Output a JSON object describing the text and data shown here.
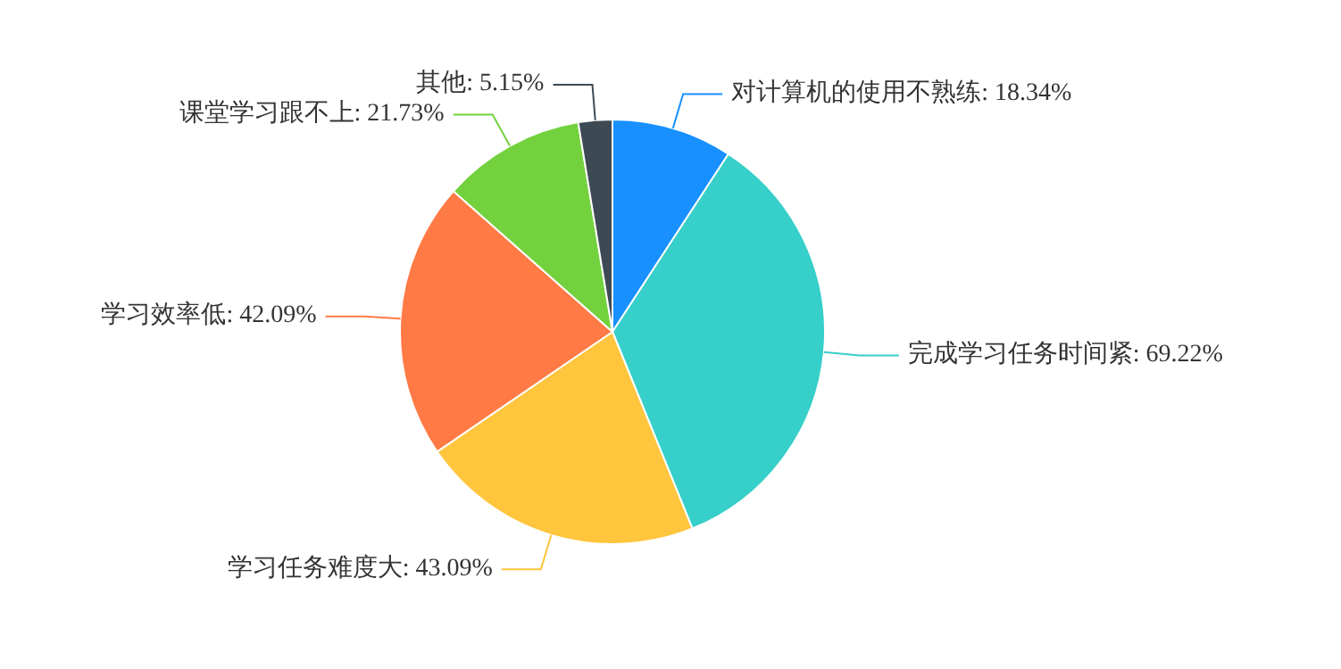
{
  "chart_data": {
    "type": "pie",
    "categories": [
      "对计算机的使用不熟练",
      "完成学习任务时间紧",
      "学习任务难度大",
      "学习效率低",
      "课堂学习跟不上",
      "其他"
    ],
    "values": [
      18.34,
      69.22,
      43.09,
      42.09,
      21.73,
      5.15
    ],
    "value_labels": [
      "18.34%",
      "69.22%",
      "43.09%",
      "42.09%",
      "21.73%",
      "5.15%"
    ],
    "colors": [
      "#1890ff",
      "#36cfc9",
      "#ffc53d",
      "#ff7a45",
      "#73d13d",
      "#3d4a54"
    ]
  }
}
